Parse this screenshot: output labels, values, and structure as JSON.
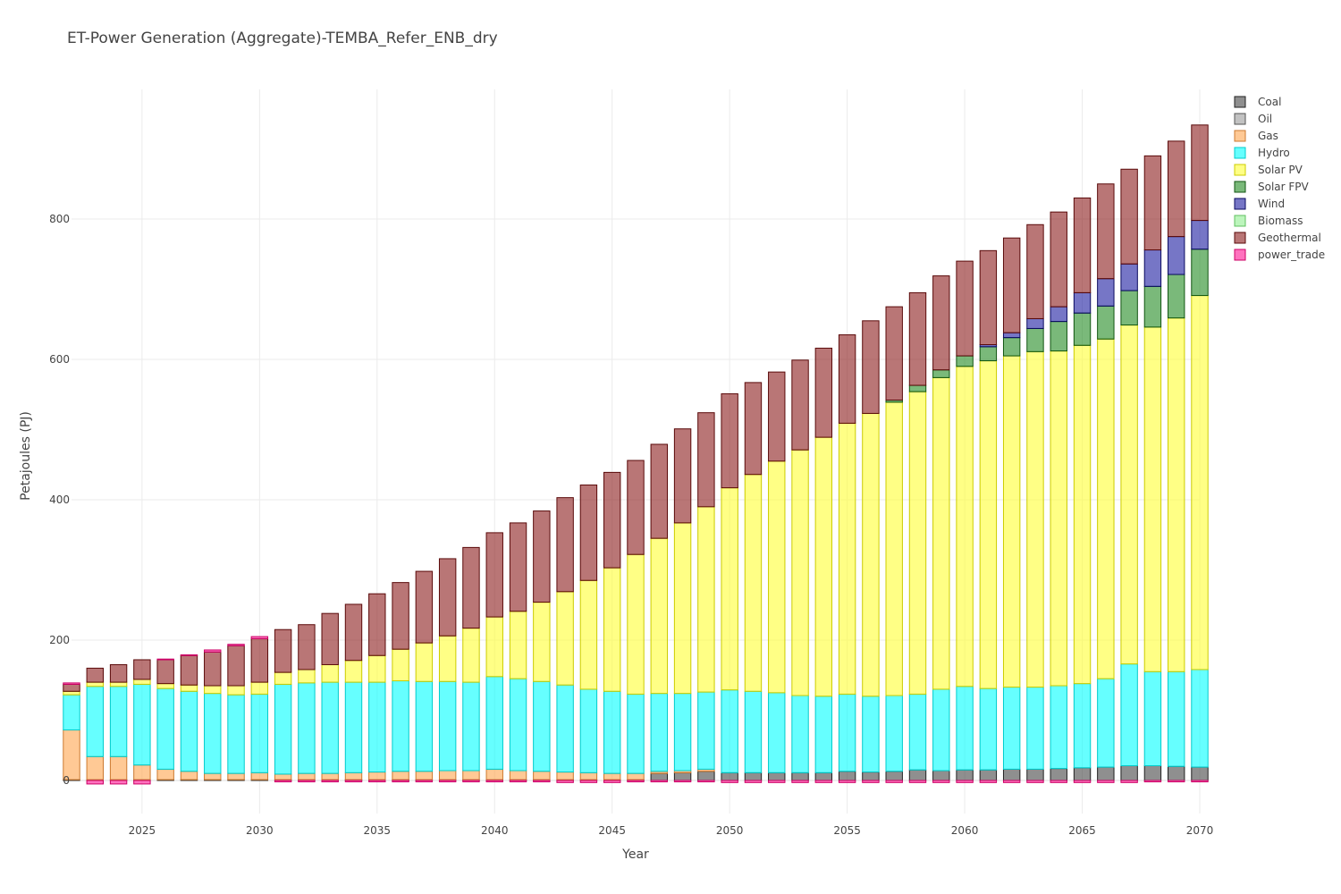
{
  "chart_data": {
    "type": "bar",
    "stacked": true,
    "title": "ET-Power Generation (Aggregate)-TEMBA_Refer_ENB_dry",
    "xlabel": "Year",
    "ylabel": "Petajoules (PJ)",
    "ylim": [
      -40,
      1000
    ],
    "xlim": [
      2022,
      2070
    ],
    "x_ticks": [
      2025,
      2030,
      2035,
      2040,
      2045,
      2050,
      2055,
      2060,
      2065,
      2070
    ],
    "y_ticks": [
      0,
      200,
      400,
      600,
      800
    ],
    "grid": true,
    "legend_position": "right",
    "x": [
      2022,
      2023,
      2024,
      2025,
      2026,
      2027,
      2028,
      2029,
      2030,
      2031,
      2032,
      2033,
      2034,
      2035,
      2036,
      2037,
      2038,
      2039,
      2040,
      2041,
      2042,
      2043,
      2044,
      2045,
      2046,
      2047,
      2048,
      2049,
      2050,
      2051,
      2052,
      2053,
      2054,
      2055,
      2056,
      2057,
      2058,
      2059,
      2060,
      2061,
      2062,
      2063,
      2064,
      2065,
      2066,
      2067,
      2068,
      2069,
      2070
    ],
    "series": [
      {
        "name": "Coal",
        "color": "#444444",
        "line": "#222222",
        "values": [
          1,
          1,
          1,
          1,
          1,
          1,
          1,
          1,
          1,
          1,
          1,
          1,
          1,
          1,
          1,
          1,
          1,
          1,
          1,
          1,
          1,
          1,
          1,
          1,
          1,
          10,
          11,
          13,
          11,
          11,
          11,
          11,
          11,
          13,
          12,
          13,
          15,
          14,
          15,
          15,
          16,
          16,
          17,
          18,
          19,
          21,
          21,
          20,
          19
        ]
      },
      {
        "name": "Oil",
        "color": "#999999",
        "line": "#555555",
        "values": [
          0,
          0,
          0,
          0,
          0,
          0,
          0,
          0,
          0,
          0,
          0,
          0,
          0,
          0,
          0,
          0,
          0,
          0,
          0,
          0,
          0,
          0,
          0,
          0,
          0,
          0,
          0,
          0,
          0,
          0,
          0,
          0,
          0,
          0,
          0,
          0,
          0,
          0,
          0,
          0,
          0,
          0,
          0,
          0,
          0,
          0,
          0,
          0,
          0
        ]
      },
      {
        "name": "Gas",
        "color": "#ffa54f",
        "line": "#cc7a30",
        "values": [
          71,
          33,
          33,
          21,
          15,
          12,
          9,
          9,
          10,
          8,
          9,
          9,
          10,
          11,
          12,
          12,
          13,
          13,
          15,
          13,
          12,
          11,
          10,
          9,
          9,
          3,
          3,
          3,
          0,
          0,
          0,
          0,
          0,
          0,
          0,
          0,
          0,
          0,
          0,
          0,
          0,
          0,
          0,
          0,
          0,
          0,
          0,
          0,
          0
        ]
      },
      {
        "name": "Hydro",
        "color": "#00ffff",
        "line": "#00cccc",
        "values": [
          50,
          100,
          100,
          115,
          115,
          114,
          114,
          112,
          112,
          128,
          129,
          130,
          129,
          128,
          129,
          128,
          127,
          126,
          132,
          131,
          128,
          124,
          119,
          117,
          113,
          111,
          110,
          110,
          118,
          116,
          114,
          110,
          109,
          110,
          108,
          108,
          108,
          116,
          119,
          116,
          117,
          117,
          118,
          120,
          126,
          145,
          134,
          135,
          139
        ]
      },
      {
        "name": "Solar PV",
        "color": "#ffff33",
        "line": "#cccc00",
        "values": [
          5,
          6,
          6,
          7,
          7,
          9,
          11,
          13,
          17,
          17,
          19,
          25,
          31,
          38,
          45,
          55,
          65,
          77,
          85,
          96,
          113,
          133,
          155,
          176,
          199,
          221,
          243,
          264,
          288,
          309,
          330,
          350,
          369,
          386,
          403,
          418,
          431,
          444,
          456,
          467,
          472,
          478,
          477,
          482,
          484,
          483,
          491,
          504,
          533
        ]
      },
      {
        "name": "Solar FPV",
        "color": "#228b22",
        "line": "#115511",
        "values": [
          0,
          0,
          0,
          0,
          0,
          0,
          0,
          0,
          0,
          0,
          0,
          0,
          0,
          0,
          0,
          0,
          0,
          0,
          0,
          0,
          0,
          0,
          0,
          0,
          0,
          0,
          0,
          0,
          0,
          0,
          0,
          0,
          0,
          0,
          0,
          3,
          9,
          11,
          15,
          20,
          26,
          33,
          42,
          46,
          47,
          49,
          58,
          62,
          66
        ]
      },
      {
        "name": "Wind",
        "color": "#1a1aa0",
        "line": "#0a0a60",
        "values": [
          0,
          0,
          0,
          0,
          0,
          0,
          0,
          0,
          0,
          0,
          0,
          0,
          0,
          0,
          0,
          0,
          0,
          0,
          0,
          0,
          0,
          0,
          0,
          0,
          0,
          0,
          0,
          0,
          0,
          0,
          0,
          0,
          0,
          0,
          0,
          0,
          0,
          0,
          0,
          3,
          7,
          14,
          21,
          29,
          39,
          38,
          52,
          54,
          41
        ]
      },
      {
        "name": "Biomass",
        "color": "#90ee90",
        "line": "#60c060",
        "values": [
          0,
          0,
          0,
          0,
          0,
          0,
          0,
          0,
          0,
          0,
          0,
          0,
          0,
          0,
          0,
          0,
          0,
          0,
          0,
          0,
          0,
          0,
          0,
          0,
          0,
          0,
          0,
          0,
          0,
          0,
          0,
          0,
          0,
          0,
          0,
          0,
          0,
          0,
          0,
          0,
          0,
          0,
          0,
          0,
          0,
          0,
          0,
          0,
          0
        ]
      },
      {
        "name": "Geothermal",
        "color": "#8b1a1a",
        "line": "#5a0a0a",
        "values": [
          10,
          20,
          25,
          28,
          34,
          42,
          48,
          57,
          62,
          61,
          64,
          73,
          80,
          88,
          95,
          102,
          110,
          115,
          120,
          126,
          130,
          134,
          136,
          136,
          134,
          134,
          134,
          134,
          134,
          131,
          127,
          128,
          127,
          126,
          132,
          133,
          132,
          134,
          135,
          134,
          135,
          134,
          135,
          135,
          135,
          135,
          134,
          136,
          136
        ]
      },
      {
        "name": "power_trade",
        "color": "#ff1493",
        "line": "#cc0066",
        "values": [
          2,
          -5,
          -5,
          -5,
          1,
          1,
          3,
          2,
          3,
          -2,
          -2,
          -2,
          -2,
          -2,
          -2,
          -2,
          -2,
          -2,
          -2,
          -2,
          -2,
          -3,
          -3,
          -3,
          -2,
          -2,
          -2,
          -2,
          -3,
          -3,
          -3,
          -3,
          -3,
          -3,
          -3,
          -3,
          -3,
          -3,
          -3,
          -3,
          -3,
          -3,
          -3,
          -3,
          -3,
          -3,
          -2,
          -2,
          -2
        ]
      }
    ]
  }
}
